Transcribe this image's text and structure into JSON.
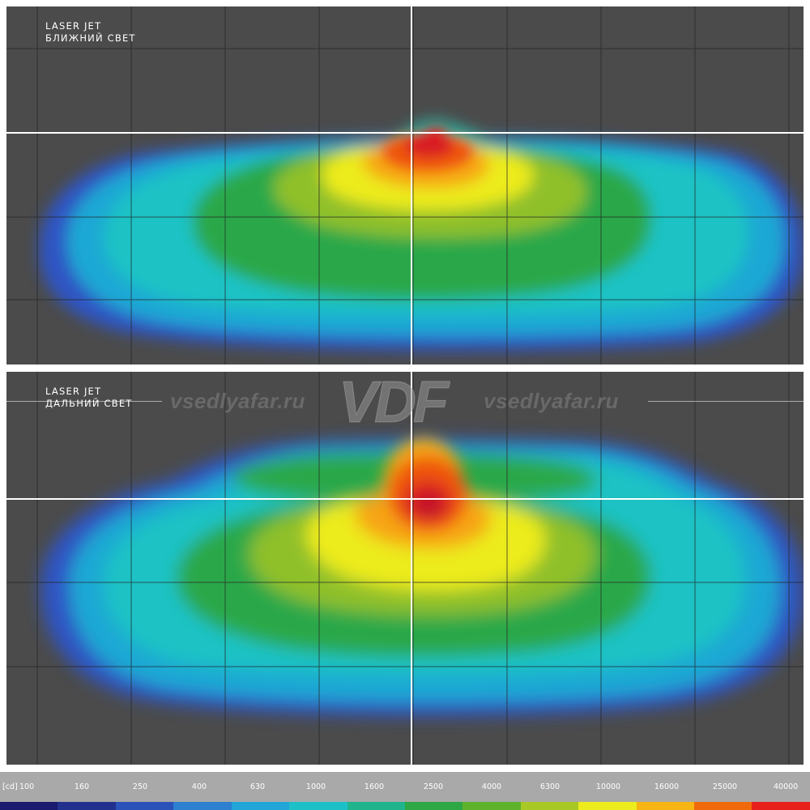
{
  "chart_data": [
    {
      "type": "heatmap",
      "title": "LASER JET",
      "subtitle": "БЛИЖНИЙ СВЕТ",
      "grid": true,
      "crosshair": true
    },
    {
      "type": "heatmap",
      "title": "LASER JET",
      "subtitle": "ДАЛЬНИЙ СВЕТ",
      "grid": true,
      "crosshair": true
    }
  ],
  "watermark": {
    "site_left": "vsedlyafar.ru",
    "logo": "VDF",
    "site_right": "vsedlyafar.ru"
  },
  "legend": {
    "unit": "[cd]",
    "ticks": [
      "100",
      "160",
      "250",
      "400",
      "630",
      "1000",
      "1600",
      "2500",
      "4000",
      "6300",
      "10000",
      "16000",
      "25000",
      "40000"
    ],
    "colors": [
      "#1a1a6e",
      "#23318e",
      "#2a52b8",
      "#2d7fd0",
      "#22a6d8",
      "#1ec0c8",
      "#1fb48c",
      "#2da845",
      "#5fb22c",
      "#a8c825",
      "#ecec1e",
      "#f6b512",
      "#f06a0c",
      "#e8201c"
    ]
  }
}
